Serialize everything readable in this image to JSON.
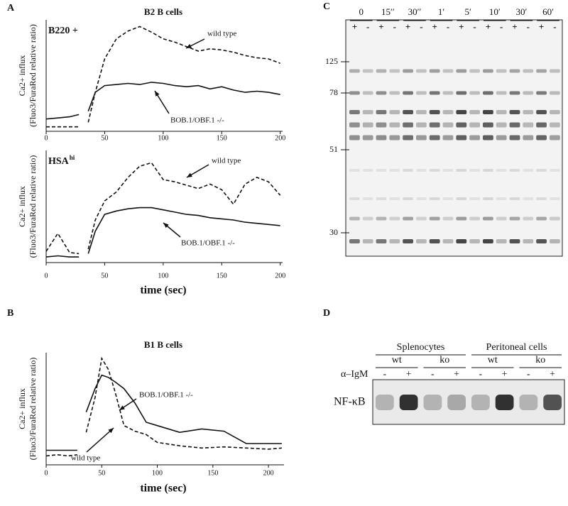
{
  "chart_data": [
    {
      "type": "line",
      "panel_label": "A",
      "title": "B2 B cells",
      "marker_label": "B220 +",
      "y_label": [
        "Ca2+ influx",
        "(Fluo3/FuraRed relative ratio)"
      ],
      "x": [
        0,
        10,
        20,
        28,
        32,
        36,
        42,
        50,
        60,
        70,
        80,
        90,
        100,
        110,
        120,
        130,
        140,
        150,
        160,
        170,
        180,
        190,
        200
      ],
      "xlim": [
        0,
        202
      ],
      "xticks": [
        0,
        50,
        100,
        150,
        200
      ],
      "ylim": [
        0,
        10
      ],
      "series": [
        {
          "name": "wild type",
          "color": "#111111",
          "line_style": "dashed",
          "values": [
            0.4,
            0.4,
            0.4,
            0.4,
            null,
            0.8,
            3.5,
            6.5,
            8.3,
            9.0,
            9.4,
            8.9,
            8.3,
            8.0,
            7.6,
            7.2,
            7.4,
            7.3,
            7.1,
            6.8,
            6.6,
            6.5,
            6.1
          ]
        },
        {
          "name": "BOB.1/OBF.1 -/-",
          "color": "#111111",
          "line_style": "solid",
          "values": [
            1.1,
            1.2,
            1.3,
            1.5,
            null,
            1.8,
            3.5,
            4.1,
            4.2,
            4.3,
            4.2,
            4.4,
            4.3,
            4.1,
            4.0,
            4.1,
            3.8,
            4.0,
            3.7,
            3.5,
            3.6,
            3.5,
            3.3
          ]
        }
      ]
    },
    {
      "type": "line",
      "marker_label": "HSA",
      "marker_superscript": "hi",
      "x_label": "time (sec)",
      "y_label": [
        "Ca2+ influx",
        "(Fluo3/FuraRed relative ratio)"
      ],
      "x": [
        0,
        10,
        20,
        28,
        32,
        36,
        42,
        50,
        60,
        70,
        80,
        90,
        100,
        110,
        120,
        130,
        140,
        150,
        160,
        170,
        180,
        190,
        200
      ],
      "xlim": [
        0,
        202
      ],
      "xticks": [
        0,
        50,
        100,
        150,
        200
      ],
      "ylim": [
        0,
        10
      ],
      "series": [
        {
          "name": "wild type",
          "color": "#111111",
          "line_style": "dashed",
          "values": [
            1.0,
            2.6,
            0.9,
            0.8,
            null,
            1.2,
            3.8,
            5.5,
            6.3,
            7.6,
            8.6,
            8.9,
            7.4,
            7.2,
            6.9,
            6.6,
            7.0,
            6.5,
            5.2,
            7.0,
            7.6,
            7.2,
            6.0
          ]
        },
        {
          "name": "BOB.1/OBF.1 -/-",
          "color": "#111111",
          "line_style": "solid",
          "values": [
            0.5,
            0.6,
            0.5,
            0.5,
            null,
            0.8,
            2.8,
            4.3,
            4.6,
            4.8,
            4.9,
            4.9,
            4.7,
            4.5,
            4.3,
            4.2,
            4.0,
            3.9,
            3.8,
            3.6,
            3.5,
            3.4,
            3.3
          ]
        }
      ]
    },
    {
      "type": "line",
      "panel_label": "B",
      "title": "B1 B cells",
      "x_label": "time (sec)",
      "y_label": [
        "Ca2+ influx",
        "(Fluo3/FuraRed relative ratio)"
      ],
      "x": [
        0,
        10,
        20,
        28,
        32,
        36,
        44,
        50,
        56,
        62,
        70,
        80,
        90,
        100,
        120,
        140,
        160,
        180,
        200,
        212
      ],
      "xlim": [
        0,
        214
      ],
      "xticks": [
        0,
        50,
        100,
        150,
        200
      ],
      "ylim": [
        0,
        10
      ],
      "series": [
        {
          "name": "BOB.1/OBF.1 -/-",
          "color": "#111111",
          "line_style": "solid",
          "values": [
            1.3,
            1.3,
            1.3,
            1.3,
            null,
            4.7,
            6.8,
            8.0,
            7.8,
            7.4,
            6.8,
            5.5,
            3.8,
            3.5,
            2.9,
            3.2,
            3.0,
            1.9,
            1.9,
            1.9
          ]
        },
        {
          "name": "wild type",
          "color": "#111111",
          "line_style": "dashed",
          "values": [
            0.8,
            0.9,
            0.8,
            0.9,
            null,
            2.9,
            6.0,
            9.5,
            8.5,
            6.5,
            3.5,
            3.0,
            2.7,
            2.0,
            1.7,
            1.5,
            1.6,
            1.5,
            1.4,
            1.5
          ]
        }
      ]
    }
  ],
  "blot_c": {
    "label": "C",
    "timepoints": [
      "0",
      "15′′",
      "30′′",
      "1′",
      "5′",
      "10′",
      "30′",
      "60′"
    ],
    "treatment": [
      "+",
      "-"
    ],
    "mw_markers": [
      125,
      78,
      51,
      30
    ]
  },
  "blot_d": {
    "label": "D",
    "groups": [
      {
        "name": "Splenocytes",
        "subgroups": [
          "wt",
          "ko"
        ]
      },
      {
        "name": "Peritoneal cells",
        "subgroups": [
          "wt",
          "ko"
        ]
      }
    ],
    "treatment_label": "α–IgM",
    "treatment": [
      "-",
      "+"
    ],
    "band_label": "NF-κB"
  }
}
